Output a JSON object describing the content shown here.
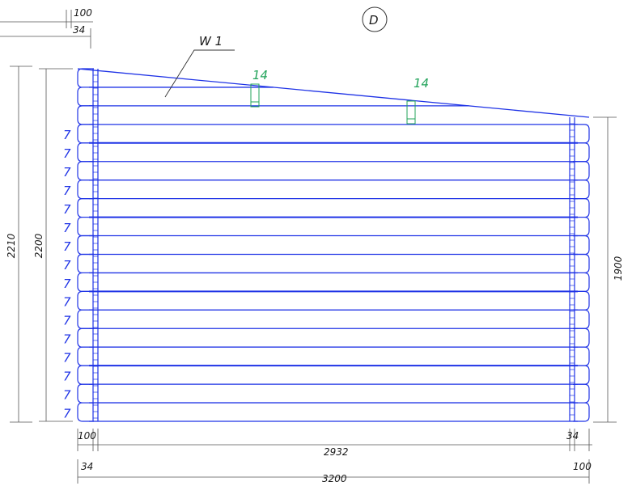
{
  "view_label": "D",
  "wall_label": "W 1",
  "colors": {
    "wall": "#1f33e6",
    "callout": "#22a35a",
    "dimension": "#555555",
    "row_mark": "#1f33e6"
  },
  "callouts": [
    "14",
    "14"
  ],
  "row_mark": "7",
  "dimensions": {
    "top_offset_a": "100",
    "top_offset_b": "34",
    "left_outer_height": "2210",
    "left_inner_height": "2200",
    "right_height": "1900",
    "bottom_left_offset_a": "100",
    "bottom_left_offset_b": "34",
    "inner_length": "2932",
    "bottom_right_offset_a": "34",
    "bottom_right_offset_b": "100",
    "total_length": "3200"
  }
}
